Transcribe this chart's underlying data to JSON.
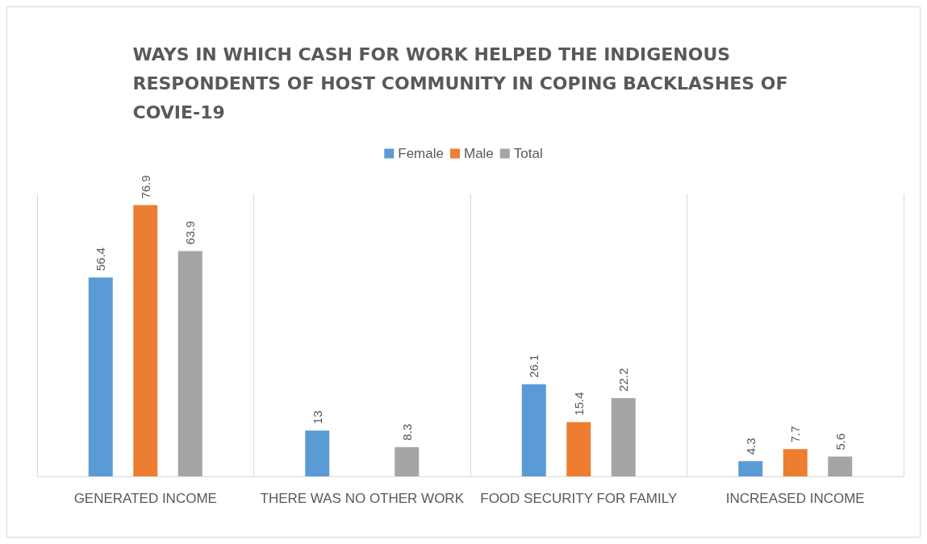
{
  "chart_data": {
    "type": "bar",
    "title": "WAYS IN WHICH CASH FOR WORK HELPED THE INDIGENOUS RESPONDENTS OF HOST COMMUNITY IN COPING BACKLASHES OF COVIE-19",
    "categories": [
      "GENERATED INCOME",
      "THERE WAS NO OTHER WORK",
      "FOOD SECURITY FOR FAMILY",
      "INCREASED INCOME"
    ],
    "series": [
      {
        "name": "Female",
        "color": "#5b9bd5",
        "values": [
          56.4,
          13,
          26.1,
          4.3
        ]
      },
      {
        "name": "Male",
        "color": "#ed7d31",
        "values": [
          76.9,
          null,
          15.4,
          7.7
        ]
      },
      {
        "name": "Total",
        "color": "#a5a5a5",
        "values": [
          63.9,
          8.3,
          22.2,
          5.6
        ]
      }
    ],
    "data_labels": true,
    "grid": "x",
    "legend": "top"
  }
}
